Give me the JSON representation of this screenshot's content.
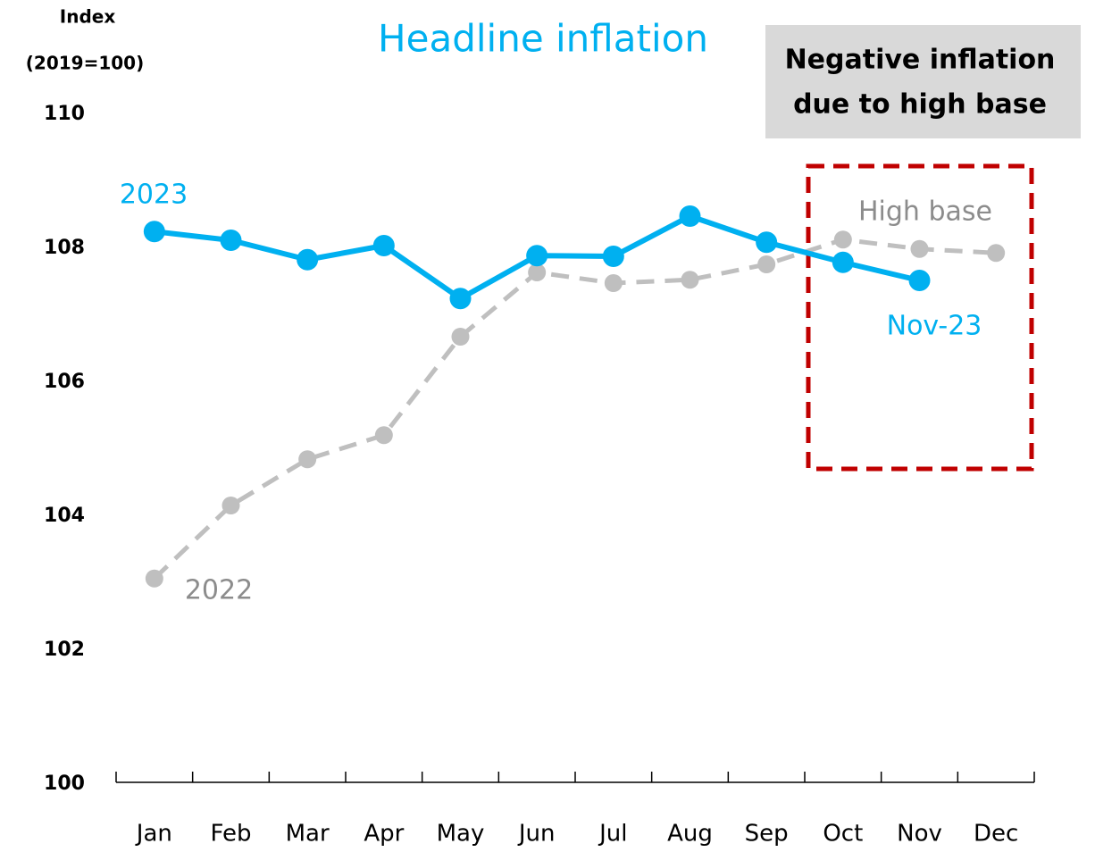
{
  "chart_data": {
    "type": "line",
    "title": "Headline inflation",
    "y_label": [
      "Index",
      "(2019=100)"
    ],
    "categories": [
      "Jan",
      "Feb",
      "Mar",
      "Apr",
      "May",
      "Jun",
      "Jul",
      "Aug",
      "Sep",
      "Oct",
      "Nov",
      "Dec"
    ],
    "series": [
      {
        "name": "2023",
        "color": "#00b0f0",
        "dashed": false,
        "values": [
          108.25,
          108.12,
          107.83,
          108.04,
          107.25,
          107.89,
          107.88,
          108.48,
          108.09,
          107.79,
          107.52,
          null
        ]
      },
      {
        "name": "2022",
        "color": "#bfbfbf",
        "dashed": true,
        "values": [
          103.07,
          104.16,
          104.85,
          105.21,
          106.68,
          107.64,
          107.48,
          107.53,
          107.76,
          108.13,
          107.99,
          107.93
        ]
      }
    ],
    "annotations": {
      "high_base": "High base",
      "last_point": "Nov-23",
      "box": [
        "Negative inflation",
        "due to high base"
      ]
    },
    "ylim": [
      100,
      110
    ],
    "yticks": [
      100,
      102,
      104,
      106,
      108,
      110
    ],
    "grid": false
  }
}
